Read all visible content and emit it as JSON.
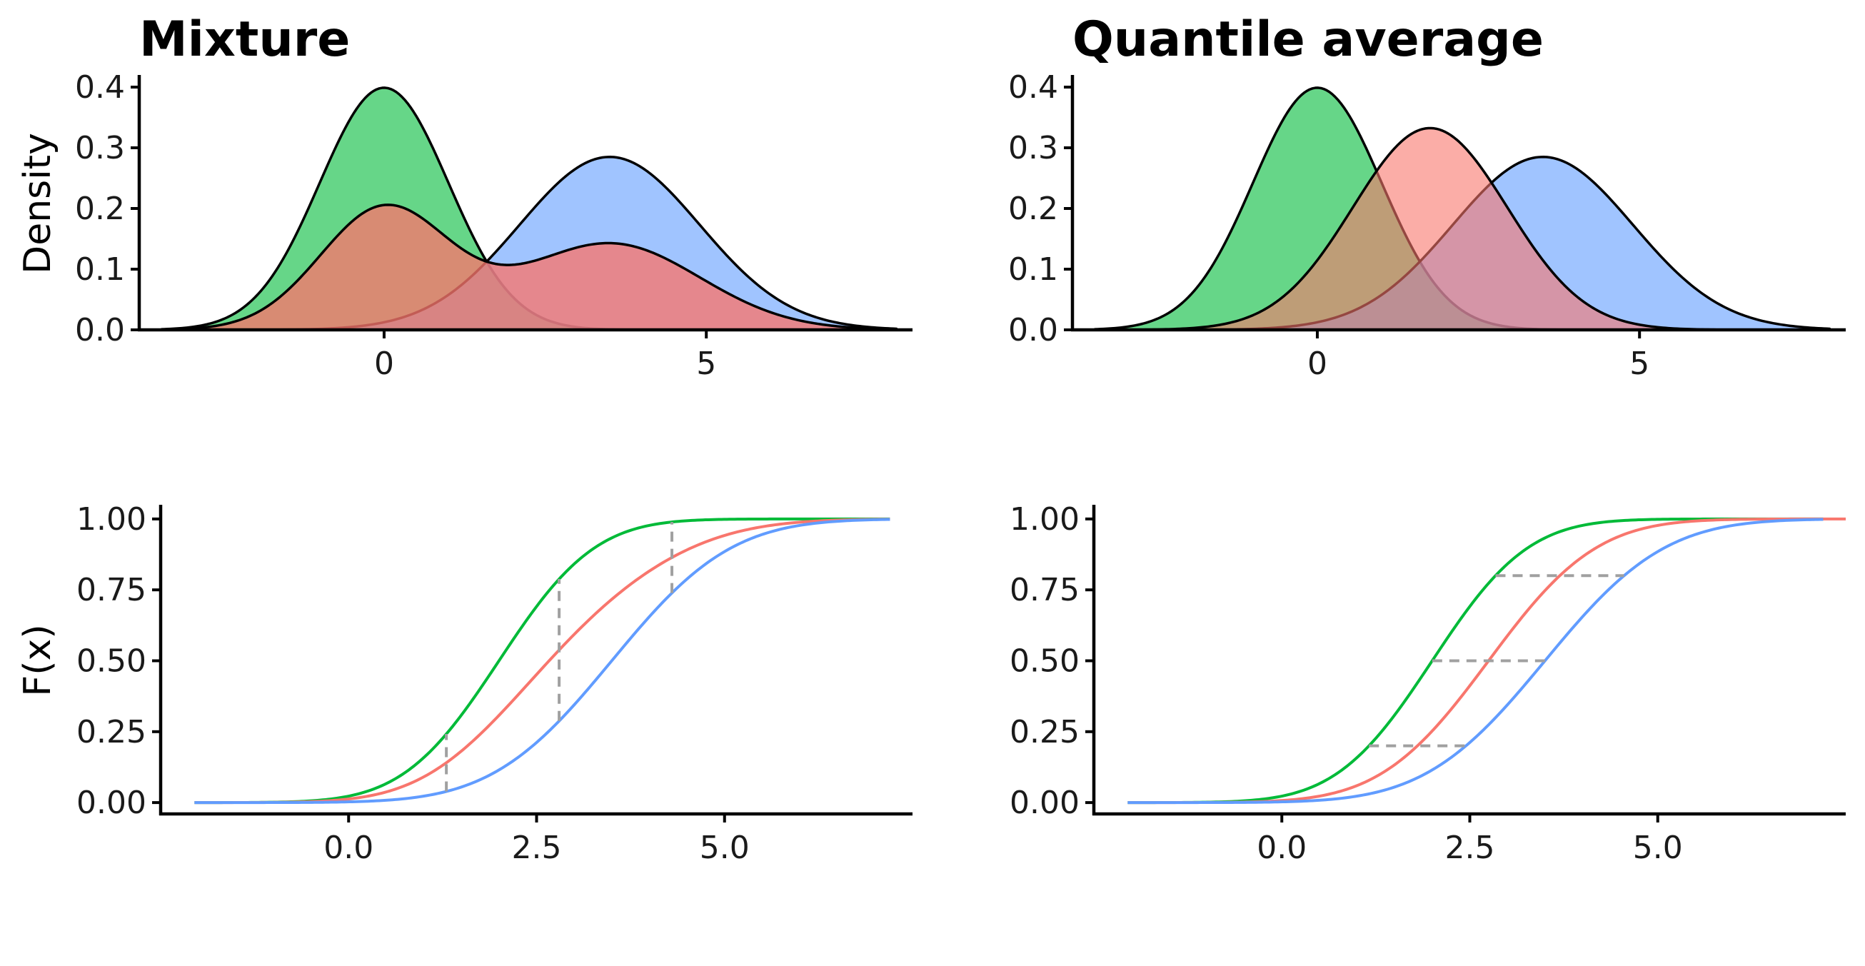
{
  "colors": {
    "green": "#00BA38",
    "red": "#F8766D",
    "blue": "#619CFF",
    "guide": "#A0A0A0"
  },
  "chart_data": [
    {
      "id": "mixture-density",
      "type": "area",
      "title": "Mixture",
      "xlabel": "",
      "ylabel": "Density",
      "xlim": [
        -3.8,
        8.2
      ],
      "ylim": [
        0,
        0.42
      ],
      "xticks": [
        0,
        5
      ],
      "xtick_labels": [
        "0",
        "5"
      ],
      "yticks": [
        0,
        0.1,
        0.2,
        0.3,
        0.4
      ],
      "ytick_labels": [
        "0.0",
        "0.1",
        "0.2",
        "0.3",
        "0.4"
      ],
      "grid": false,
      "series": [
        {
          "color": "green",
          "dist": "normal",
          "mean": 0,
          "sd": 1
        },
        {
          "color": "blue",
          "dist": "normal",
          "mean": 3.5,
          "sd": 1.4
        },
        {
          "color": "red",
          "dist": "mixture",
          "weights": [
            0.5,
            0.5
          ]
        }
      ]
    },
    {
      "id": "quantile-density",
      "type": "area",
      "title": "Quantile average",
      "xlabel": "",
      "ylabel": "",
      "xlim": [
        -3.8,
        8.2
      ],
      "ylim": [
        0,
        0.42
      ],
      "xticks": [
        0,
        5
      ],
      "xtick_labels": [
        "0",
        "5"
      ],
      "yticks": [
        0,
        0.1,
        0.2,
        0.3,
        0.4
      ],
      "ytick_labels": [
        "0.0",
        "0.1",
        "0.2",
        "0.3",
        "0.4"
      ],
      "grid": false,
      "series": [
        {
          "color": "green",
          "dist": "normal",
          "mean": 0,
          "sd": 1
        },
        {
          "color": "blue",
          "dist": "normal",
          "mean": 3.5,
          "sd": 1.4
        },
        {
          "color": "red",
          "dist": "normal",
          "mean": 1.75,
          "sd": 1.2
        }
      ]
    },
    {
      "id": "mixture-cdf",
      "type": "line",
      "title": "",
      "xlabel": "",
      "ylabel": "F(x)",
      "xlim": [
        -2.5,
        7.5
      ],
      "ylim": [
        -0.04,
        1.05
      ],
      "xticks": [
        0,
        2.5,
        5
      ],
      "xtick_labels": [
        "0.0",
        "2.5",
        "5.0"
      ],
      "yticks": [
        0,
        0.25,
        0.5,
        0.75,
        1
      ],
      "ytick_labels": [
        "0.00",
        "0.25",
        "0.50",
        "0.75",
        "1.00"
      ],
      "grid": false,
      "series": [
        {
          "color": "green",
          "dist": "normal",
          "mean": 2,
          "sd": 1
        },
        {
          "color": "red",
          "dist": "mixture",
          "weights": [
            0.5,
            0.5
          ]
        },
        {
          "color": "blue",
          "dist": "normal",
          "mean": 3.5,
          "sd": 1.25
        }
      ],
      "guides": {
        "orientation": "vertical",
        "x": [
          1.3,
          2.8,
          4.3
        ]
      }
    },
    {
      "id": "quantile-cdf",
      "type": "line",
      "title": "",
      "xlabel": "",
      "ylabel": "",
      "xlim": [
        -2.5,
        7.5
      ],
      "ylim": [
        -0.04,
        1.05
      ],
      "xticks": [
        0,
        2.5,
        5
      ],
      "xtick_labels": [
        "0.0",
        "2.5",
        "5.0"
      ],
      "yticks": [
        0,
        0.25,
        0.5,
        0.75,
        1
      ],
      "ytick_labels": [
        "0.00",
        "0.25",
        "0.50",
        "0.75",
        "1.00"
      ],
      "grid": false,
      "series": [
        {
          "color": "green",
          "dist": "normal",
          "mean": 2,
          "sd": 1
        },
        {
          "color": "red",
          "dist": "normal",
          "mean": 2.75,
          "sd": 1.125
        },
        {
          "color": "blue",
          "dist": "normal",
          "mean": 3.5,
          "sd": 1.25
        }
      ],
      "guides": {
        "orientation": "horizontal",
        "levels": [
          0.2,
          0.5,
          0.8
        ]
      }
    }
  ]
}
